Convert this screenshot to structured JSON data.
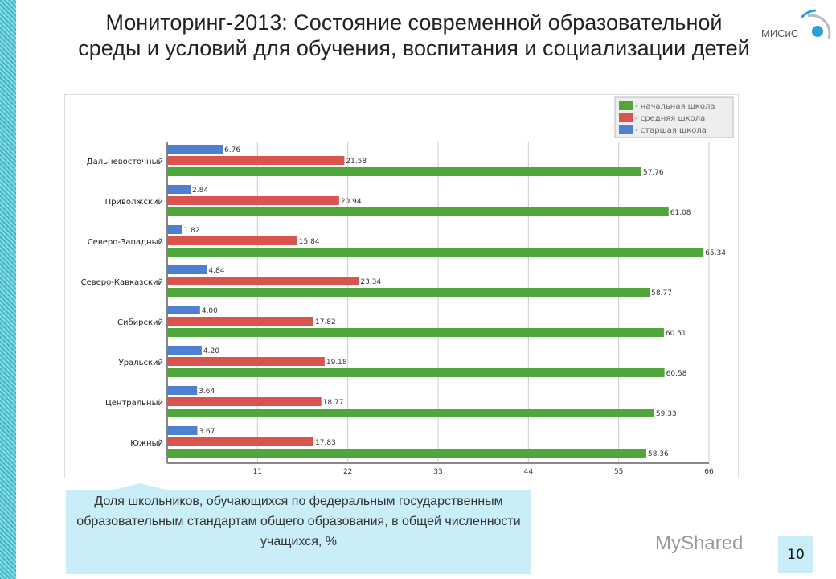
{
  "title": "Мониторинг-2013: Состояние современной образовательной среды и условий для обучения, воспитания и социализации детей",
  "logo_text": "МИСиС",
  "caption": "Доля школьников, обучающихся по федеральным государственным образовательным стандартам общего образования, в общей численности учащихся, %",
  "page_number": "10",
  "watermark": "MyShared",
  "chart_data": {
    "type": "bar",
    "orientation": "horizontal",
    "categories": [
      "Дальневосточный",
      "Приволжский",
      "Северо-Западный",
      "Северо-Кавказский",
      "Сибирский",
      "Уральский",
      "Центральный",
      "Южный"
    ],
    "series": [
      {
        "name": "- старшая школа",
        "color": "#4f7fd0",
        "values": [
          6.76,
          2.84,
          1.82,
          4.84,
          4.0,
          4.2,
          3.64,
          3.67
        ],
        "labels": [
          "6.76",
          "2.84",
          "1.82",
          "4.84",
          "4.00",
          "4.20",
          "3.64",
          "3.67"
        ]
      },
      {
        "name": "- средняя школа",
        "color": "#d9534f",
        "values": [
          21.58,
          20.94,
          15.84,
          23.34,
          17.82,
          19.18,
          18.77,
          17.83
        ],
        "labels": [
          "21.58",
          "20.94",
          "15.84",
          "23.34",
          "17.82",
          "19.18",
          "18.77",
          "17.83"
        ]
      },
      {
        "name": "- начальная школа",
        "color": "#4fa63a",
        "values": [
          57.76,
          61.08,
          65.34,
          58.77,
          60.51,
          60.58,
          59.33,
          58.36
        ],
        "labels": [
          "57.76",
          "61.08",
          "65.34",
          "58.77",
          "60.51",
          "60.58",
          "59.33",
          "58.36"
        ]
      }
    ],
    "legend_order": [
      "- начальная школа",
      "- средняя школа",
      "- старшая школа"
    ],
    "xlim": [
      0,
      66
    ],
    "xticks": [
      "11",
      "22",
      "33",
      "44",
      "55",
      "66"
    ],
    "grid": true,
    "legend": "top-right"
  }
}
